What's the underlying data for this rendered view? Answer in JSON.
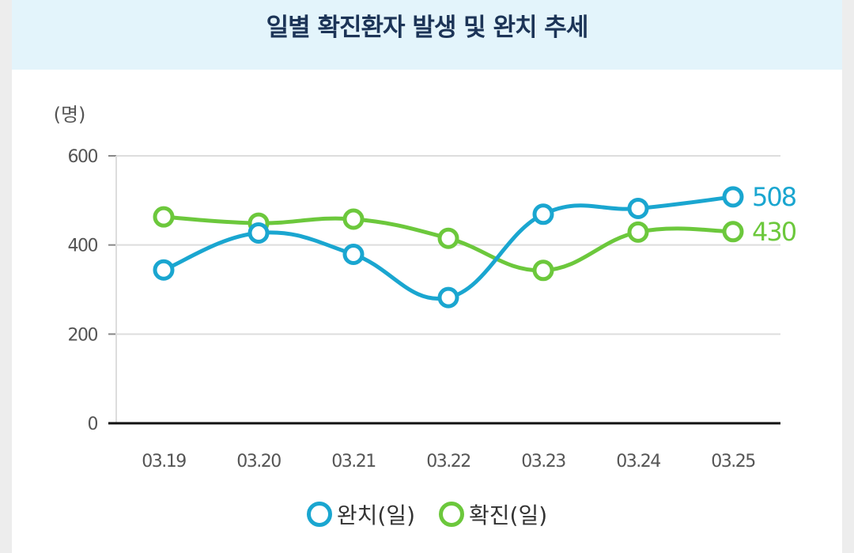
{
  "chart_data": {
    "type": "line",
    "title": "일별 확진환자 발생 및 완치 추세",
    "ylabel": "(명)",
    "xlabel": "",
    "ylim": [
      0,
      600
    ],
    "yticks": [
      "0",
      "200",
      "400",
      "600"
    ],
    "categories": [
      "03.19",
      "03.20",
      "03.21",
      "03.22",
      "03.23",
      "03.24",
      "03.25"
    ],
    "series": [
      {
        "name": "완치(일)",
        "color": "#1aa6d0",
        "values": [
          344,
          427,
          379,
          282,
          469,
          482,
          508
        ],
        "end_label": "508"
      },
      {
        "name": "확진(일)",
        "color": "#6cc83c",
        "values": [
          463,
          449,
          458,
          415,
          343,
          429,
          430
        ],
        "end_label": "430"
      }
    ],
    "grid": true,
    "legend": "bottom"
  }
}
